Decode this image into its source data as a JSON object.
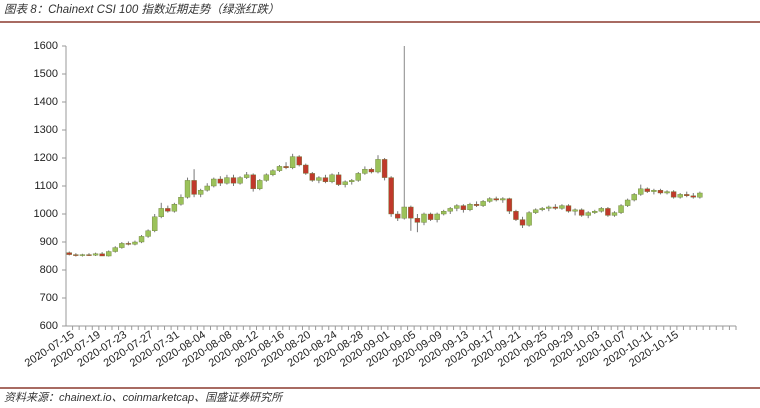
{
  "chart_data": {
    "type": "candlestick",
    "title": "图表 8：Chainext CSI 100 指数近期走势（绿涨红跌）",
    "source": "资料来源：chainext.io、coinmarketcap、国盛证券研究所",
    "up_color": "#9bc25a",
    "down_color": "#c0392b",
    "ylim": [
      600,
      1600
    ],
    "yticks": [
      600,
      700,
      800,
      900,
      1000,
      1100,
      1200,
      1300,
      1400,
      1500,
      1600
    ],
    "grid": false,
    "categories": [
      "2020-07-15",
      null,
      null,
      null,
      "2020-07-19",
      null,
      null,
      null,
      "2020-07-23",
      null,
      null,
      null,
      "2020-07-27",
      null,
      null,
      null,
      "2020-07-31",
      null,
      null,
      null,
      "2020-08-04",
      null,
      null,
      null,
      "2020-08-08",
      null,
      null,
      null,
      "2020-08-12",
      null,
      null,
      null,
      "2020-08-16",
      null,
      null,
      null,
      "2020-08-20",
      null,
      null,
      null,
      "2020-08-24",
      null,
      null,
      null,
      "2020-08-28",
      null,
      null,
      null,
      "2020-09-01",
      null,
      null,
      null,
      "2020-09-05",
      null,
      null,
      null,
      "2020-09-09",
      null,
      null,
      null,
      "2020-09-13",
      null,
      null,
      null,
      "2020-09-17",
      null,
      null,
      null,
      "2020-09-21",
      null,
      null,
      null,
      "2020-09-25",
      null,
      null,
      null,
      "2020-09-29",
      null,
      null,
      null,
      "2020-10-03",
      null,
      null,
      null,
      "2020-10-07",
      null,
      null,
      null,
      "2020-10-11",
      null,
      null,
      null,
      "2020-10-15",
      null,
      null,
      null,
      null,
      null,
      null,
      null,
      null,
      null
    ],
    "open": [
      862,
      855,
      852,
      855,
      853,
      858,
      850,
      866,
      880,
      895,
      892,
      900,
      920,
      940,
      990,
      1020,
      1010,
      1035,
      1060,
      1120,
      1070,
      1085,
      1100,
      1125,
      1110,
      1130,
      1110,
      1130,
      1140,
      1090,
      1120,
      1140,
      1155,
      1170,
      1165,
      1205,
      1175,
      1145,
      1120,
      1130,
      1115,
      1140,
      1105,
      1115,
      1120,
      1145,
      1160,
      1150,
      1195,
      1130,
      1000,
      985,
      1025,
      985,
      970,
      1000,
      980,
      1000,
      1010,
      1020,
      1030,
      1015,
      1035,
      1030,
      1045,
      1055,
      1050,
      1055,
      1010,
      980,
      960,
      1005,
      1015,
      1020,
      1025,
      1020,
      1030,
      1010,
      1015,
      995,
      1005,
      1010,
      1020,
      995,
      1005,
      1030,
      1050,
      1070,
      1090,
      1080,
      1085,
      1075,
      1080,
      1060,
      1070,
      1065,
      1060,
      null,
      null,
      null,
      null,
      null
    ],
    "high": [
      866,
      860,
      858,
      860,
      862,
      864,
      870,
      885,
      900,
      902,
      905,
      925,
      945,
      1000,
      1040,
      1030,
      1040,
      1070,
      1130,
      1160,
      1090,
      1110,
      1130,
      1135,
      1140,
      1140,
      1135,
      1150,
      1145,
      1125,
      1145,
      1160,
      1175,
      1185,
      1215,
      1210,
      1180,
      1150,
      1135,
      1140,
      1145,
      1150,
      1120,
      1125,
      1150,
      1170,
      1165,
      1210,
      1200,
      1135,
      1010,
      1600,
      1030,
      1000,
      1005,
      1005,
      1005,
      1015,
      1025,
      1035,
      1035,
      1040,
      1045,
      1050,
      1060,
      1062,
      1060,
      1058,
      1015,
      990,
      1010,
      1020,
      1025,
      1030,
      1035,
      1035,
      1035,
      1020,
      1020,
      1010,
      1015,
      1025,
      1025,
      1010,
      1035,
      1055,
      1075,
      1105,
      1095,
      1090,
      1090,
      1085,
      1085,
      1075,
      1080,
      1075,
      1080,
      null,
      null,
      null,
      null,
      null
    ],
    "low": [
      852,
      848,
      848,
      850,
      850,
      852,
      848,
      862,
      876,
      888,
      888,
      896,
      915,
      935,
      985,
      1005,
      1005,
      1030,
      1055,
      1060,
      1060,
      1080,
      1095,
      1100,
      1105,
      1100,
      1105,
      1125,
      1080,
      1085,
      1115,
      1135,
      1150,
      1160,
      1160,
      1170,
      1140,
      1115,
      1110,
      1110,
      1110,
      1100,
      1095,
      1105,
      1115,
      1140,
      1145,
      1145,
      1120,
      990,
      975,
      980,
      940,
      935,
      960,
      975,
      970,
      995,
      1000,
      1010,
      1005,
      1010,
      1025,
      1025,
      1040,
      1045,
      1040,
      1000,
      975,
      950,
      955,
      1000,
      1010,
      1010,
      1015,
      1015,
      1005,
      995,
      990,
      985,
      1000,
      1005,
      990,
      990,
      1000,
      1025,
      1045,
      1065,
      1075,
      1070,
      1070,
      1070,
      1055,
      1055,
      1060,
      1055,
      1055,
      null,
      null,
      null,
      null,
      null
    ],
    "close": [
      855,
      852,
      855,
      853,
      858,
      850,
      866,
      880,
      895,
      892,
      900,
      920,
      940,
      990,
      1020,
      1010,
      1035,
      1060,
      1120,
      1070,
      1085,
      1100,
      1125,
      1110,
      1130,
      1110,
      1130,
      1140,
      1090,
      1120,
      1140,
      1155,
      1170,
      1165,
      1205,
      1175,
      1145,
      1120,
      1130,
      1115,
      1140,
      1105,
      1115,
      1120,
      1145,
      1160,
      1150,
      1195,
      1130,
      1000,
      985,
      1025,
      985,
      970,
      1000,
      980,
      1000,
      1010,
      1020,
      1030,
      1015,
      1035,
      1030,
      1045,
      1055,
      1050,
      1055,
      1010,
      980,
      960,
      1005,
      1015,
      1020,
      1025,
      1020,
      1030,
      1010,
      1015,
      995,
      1005,
      1010,
      1020,
      995,
      1005,
      1030,
      1050,
      1070,
      1090,
      1080,
      1085,
      1075,
      1080,
      1060,
      1070,
      1065,
      1060,
      1075,
      null,
      null,
      null,
      null,
      null
    ]
  }
}
